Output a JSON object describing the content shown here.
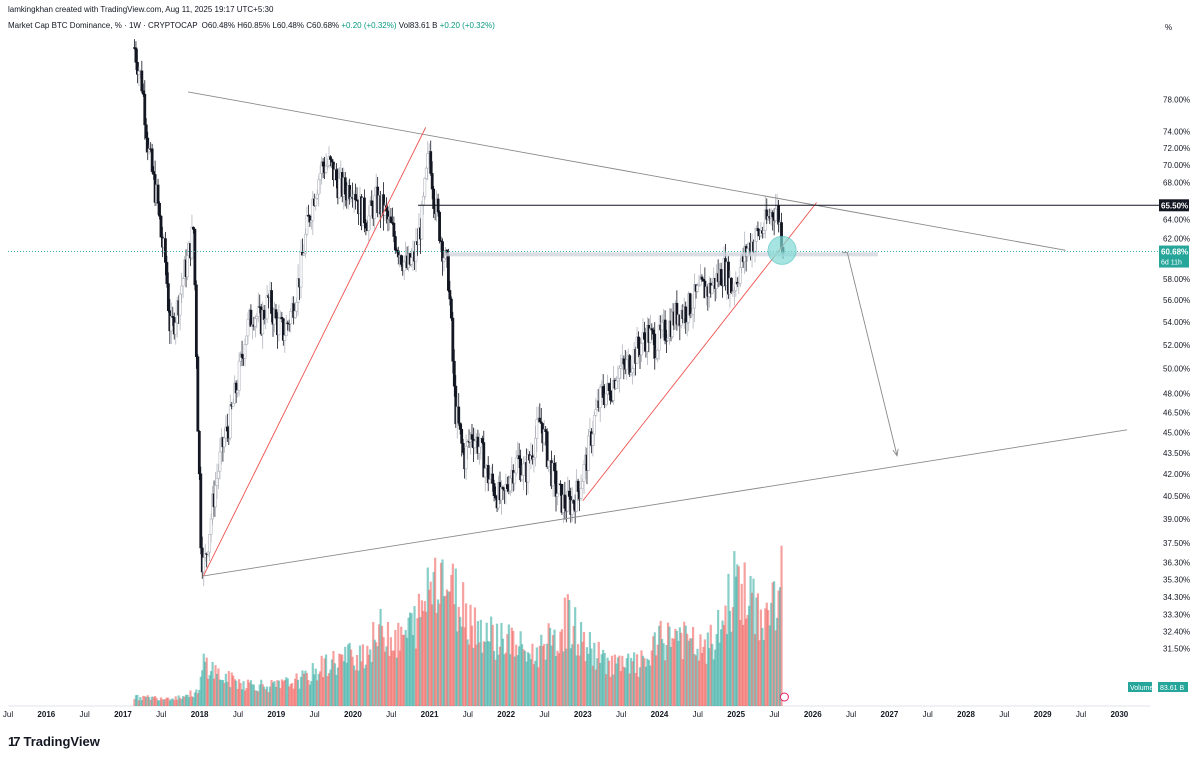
{
  "header": {
    "credit": "lamkingkhan created with TradingView.com, Aug 11, 2025 19:17 UTC+5:30",
    "symbol": "Market Cap BTC Dominance, %",
    "interval": "1W",
    "exchange": "CRYPTOCAP",
    "open": "O60.48%",
    "high": "H60.85%",
    "low": "L60.48%",
    "close": "C60.68%",
    "change": "+0.20 (+0.32%)",
    "volume": "Vol83.61 B",
    "volume_change": "+0.20 (+0.32%)",
    "scale_unit": "%"
  },
  "footer": {
    "logo": "TradingView",
    "logo_mark": "17"
  },
  "colors": {
    "up": "#26a69a",
    "down": "#ef5350",
    "line": "#9e9e9e",
    "trend": "#ef5350",
    "level": "#131722",
    "badge_green": "#26a69a",
    "badge_dark": "#131722",
    "highlight": "#7fd9d4"
  },
  "chart_data": {
    "type": "candlestick",
    "title": "Market Cap BTC Dominance, % · 1W · CRYPTOCAP",
    "y_axis": {
      "scale": "log",
      "range": [
        29.5,
        83
      ],
      "ticks": [
        "78.00%",
        "74.00%",
        "72.00%",
        "70.00%",
        "68.00%",
        "64.00%",
        "62.00%",
        "58.00%",
        "56.00%",
        "54.00%",
        "52.00%",
        "50.00%",
        "48.00%",
        "46.50%",
        "45.00%",
        "43.50%",
        "42.00%",
        "40.50%",
        "39.00%",
        "37.50%",
        "36.30%",
        "35.30%",
        "34.30%",
        "33.30%",
        "32.40%",
        "31.50%"
      ],
      "tick_values": [
        78,
        74,
        72,
        70,
        68,
        64,
        62,
        58,
        56,
        54,
        52,
        50,
        48,
        46.5,
        45,
        43.5,
        42,
        40.5,
        39,
        37.5,
        36.3,
        35.3,
        34.3,
        33.3,
        32.4,
        31.5
      ]
    },
    "x_axis": {
      "range": [
        2015.5,
        2030.4
      ],
      "ticks": [
        {
          "label": "Jul",
          "t": 2015.5
        },
        {
          "label": "2016",
          "t": 2016.0
        },
        {
          "label": "Jul",
          "t": 2016.5
        },
        {
          "label": "2017",
          "t": 2017.0
        },
        {
          "label": "Jul",
          "t": 2017.5
        },
        {
          "label": "2018",
          "t": 2018.0
        },
        {
          "label": "Jul",
          "t": 2018.5
        },
        {
          "label": "2019",
          "t": 2019.0
        },
        {
          "label": "Jul",
          "t": 2019.5
        },
        {
          "label": "2020",
          "t": 2020.0
        },
        {
          "label": "Jul",
          "t": 2020.5
        },
        {
          "label": "2021",
          "t": 2021.0
        },
        {
          "label": "Jul",
          "t": 2021.5
        },
        {
          "label": "2022",
          "t": 2022.0
        },
        {
          "label": "Jul",
          "t": 2022.5
        },
        {
          "label": "2023",
          "t": 2023.0
        },
        {
          "label": "Jul",
          "t": 2023.5
        },
        {
          "label": "2024",
          "t": 2024.0
        },
        {
          "label": "Jul",
          "t": 2024.5
        },
        {
          "label": "2025",
          "t": 2025.0
        },
        {
          "label": "Jul",
          "t": 2025.5
        },
        {
          "label": "2026",
          "t": 2026.0
        },
        {
          "label": "Jul",
          "t": 2026.5
        },
        {
          "label": "2027",
          "t": 2027.0
        },
        {
          "label": "Jul",
          "t": 2027.5
        },
        {
          "label": "2028",
          "t": 2028.0
        },
        {
          "label": "Jul",
          "t": 2028.5
        },
        {
          "label": "2029",
          "t": 2029.0
        },
        {
          "label": "Jul",
          "t": 2029.5
        },
        {
          "label": "2030",
          "t": 2030.0
        }
      ]
    },
    "price_series": {
      "name": "BTC Dominance",
      "points": [
        [
          2017.15,
          85
        ],
        [
          2017.25,
          80
        ],
        [
          2017.33,
          72
        ],
        [
          2017.4,
          68
        ],
        [
          2017.45,
          66
        ],
        [
          2017.5,
          62
        ],
        [
          2017.55,
          60
        ],
        [
          2017.62,
          53
        ],
        [
          2017.7,
          55
        ],
        [
          2017.78,
          58
        ],
        [
          2017.85,
          60
        ],
        [
          2017.92,
          63
        ],
        [
          2017.98,
          45
        ],
        [
          2018.02,
          37
        ],
        [
          2018.06,
          36
        ],
        [
          2018.12,
          38
        ],
        [
          2018.2,
          41
        ],
        [
          2018.3,
          44
        ],
        [
          2018.4,
          46
        ],
        [
          2018.5,
          49
        ],
        [
          2018.6,
          53
        ],
        [
          2018.7,
          55
        ],
        [
          2018.8,
          54
        ],
        [
          2018.9,
          56
        ],
        [
          2019.0,
          54
        ],
        [
          2019.1,
          53
        ],
        [
          2019.2,
          55
        ],
        [
          2019.3,
          58
        ],
        [
          2019.4,
          63
        ],
        [
          2019.5,
          67
        ],
        [
          2019.6,
          70
        ],
        [
          2019.7,
          70
        ],
        [
          2019.8,
          68
        ],
        [
          2019.9,
          67
        ],
        [
          2020.0,
          68
        ],
        [
          2020.1,
          65
        ],
        [
          2020.2,
          64
        ],
        [
          2020.3,
          66
        ],
        [
          2020.4,
          65
        ],
        [
          2020.5,
          63
        ],
        [
          2020.6,
          61
        ],
        [
          2020.7,
          59
        ],
        [
          2020.8,
          60
        ],
        [
          2020.9,
          64
        ],
        [
          2021.0,
          72
        ],
        [
          2021.05,
          67
        ],
        [
          2021.15,
          62
        ],
        [
          2021.25,
          58
        ],
        [
          2021.33,
          47
        ],
        [
          2021.45,
          43
        ],
        [
          2021.55,
          45
        ],
        [
          2021.65,
          44
        ],
        [
          2021.75,
          42
        ],
        [
          2021.85,
          41
        ],
        [
          2021.95,
          40
        ],
        [
          2022.05,
          42
        ],
        [
          2022.15,
          43
        ],
        [
          2022.25,
          42
        ],
        [
          2022.35,
          44
        ],
        [
          2022.45,
          46
        ],
        [
          2022.55,
          43
        ],
        [
          2022.65,
          41
        ],
        [
          2022.75,
          40
        ],
        [
          2022.85,
          40
        ],
        [
          2022.95,
          41
        ],
        [
          2023.05,
          43
        ],
        [
          2023.15,
          46
        ],
        [
          2023.25,
          48
        ],
        [
          2023.35,
          48
        ],
        [
          2023.45,
          50
        ],
        [
          2023.55,
          50
        ],
        [
          2023.65,
          51
        ],
        [
          2023.75,
          52
        ],
        [
          2023.85,
          53
        ],
        [
          2023.95,
          52
        ],
        [
          2024.05,
          53
        ],
        [
          2024.15,
          54
        ],
        [
          2024.25,
          55
        ],
        [
          2024.35,
          55
        ],
        [
          2024.45,
          56
        ],
        [
          2024.55,
          57
        ],
        [
          2024.65,
          57
        ],
        [
          2024.75,
          58
        ],
        [
          2024.85,
          59
        ],
        [
          2024.95,
          57
        ],
        [
          2025.05,
          59
        ],
        [
          2025.15,
          61
        ],
        [
          2025.25,
          62
        ],
        [
          2025.35,
          63
        ],
        [
          2025.42,
          64
        ],
        [
          2025.48,
          65
        ],
        [
          2025.52,
          65.3
        ],
        [
          2025.56,
          64
        ],
        [
          2025.6,
          62
        ],
        [
          2025.63,
          60.68
        ]
      ]
    },
    "annotations": {
      "upper_trendline": {
        "start": [
          2017.85,
          79
        ],
        "end": [
          2029.3,
          60.8
        ]
      },
      "lower_trendline": {
        "start": [
          2018.05,
          35.5
        ],
        "end": [
          2030.1,
          45.2
        ]
      },
      "left_rising_line": {
        "start": [
          2018.05,
          35.5
        ],
        "end": [
          2020.95,
          74.5
        ]
      },
      "right_rising_line": {
        "start": [
          2023.0,
          40.2
        ],
        "end": [
          2026.05,
          65.8
        ]
      },
      "resistance_level": {
        "value": 65.5,
        "label": "65.50%",
        "t_start": 2020.85
      },
      "current_price": {
        "value": 60.68,
        "label": "60.68%",
        "countdown": "6d 11h"
      },
      "support_zone": {
        "value": 60.4,
        "t_start": 2021.2,
        "t_end": 2026.85
      },
      "highlight_circle": {
        "t": 2025.6,
        "value": 60.8
      },
      "projection_arrow": {
        "start": [
          2026.45,
          60.6
        ],
        "end": [
          2027.1,
          43.3
        ]
      }
    },
    "volume": {
      "label": "Volume",
      "last_value": "83.61 B",
      "levels": [
        [
          2017.15,
          0.06
        ],
        [
          2017.4,
          0.06
        ],
        [
          2017.7,
          0.06
        ],
        [
          2018.0,
          0.1
        ],
        [
          2018.05,
          0.32
        ],
        [
          2018.3,
          0.2
        ],
        [
          2018.6,
          0.16
        ],
        [
          2019.0,
          0.14
        ],
        [
          2019.4,
          0.2
        ],
        [
          2019.6,
          0.28
        ],
        [
          2019.9,
          0.34
        ],
        [
          2020.2,
          0.4
        ],
        [
          2020.4,
          0.56
        ],
        [
          2020.6,
          0.45
        ],
        [
          2020.9,
          0.65
        ],
        [
          2021.0,
          0.9
        ],
        [
          2021.1,
          1.0
        ],
        [
          2021.3,
          0.8
        ],
        [
          2021.4,
          0.75
        ],
        [
          2021.6,
          0.58
        ],
        [
          2021.8,
          0.5
        ],
        [
          2022.0,
          0.48
        ],
        [
          2022.2,
          0.4
        ],
        [
          2022.4,
          0.35
        ],
        [
          2022.5,
          0.5
        ],
        [
          2022.6,
          0.4
        ],
        [
          2022.8,
          0.62
        ],
        [
          2023.0,
          0.45
        ],
        [
          2023.2,
          0.35
        ],
        [
          2023.5,
          0.28
        ],
        [
          2023.8,
          0.3
        ],
        [
          2024.0,
          0.45
        ],
        [
          2024.2,
          0.52
        ],
        [
          2024.4,
          0.44
        ],
        [
          2024.6,
          0.38
        ],
        [
          2024.8,
          0.55
        ],
        [
          2025.0,
          0.9
        ],
        [
          2025.2,
          0.7
        ],
        [
          2025.4,
          0.62
        ],
        [
          2025.5,
          0.75
        ],
        [
          2025.6,
          0.88
        ]
      ]
    }
  }
}
